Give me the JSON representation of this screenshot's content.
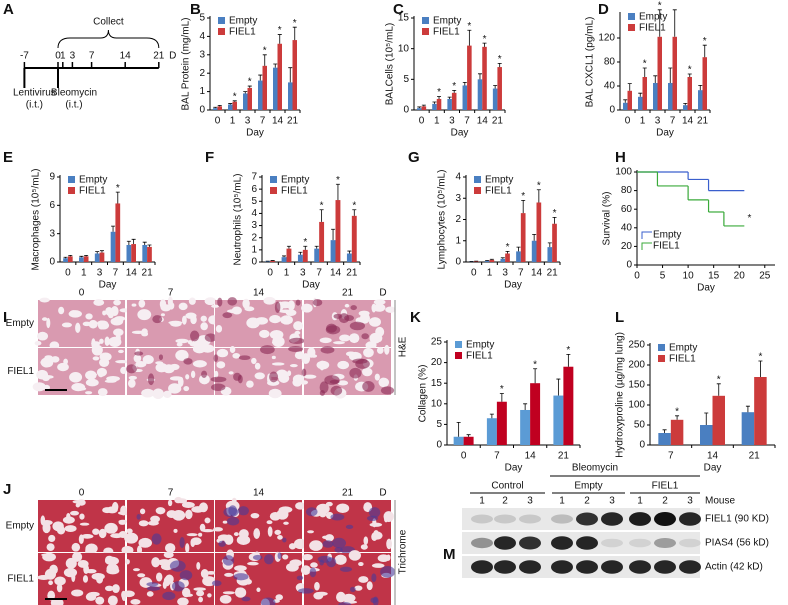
{
  "panels": {
    "A": "A",
    "B": "B",
    "C": "C",
    "D": "D",
    "E": "E",
    "F": "F",
    "G": "G",
    "H": "H",
    "I": "I",
    "J": "J",
    "K": "K",
    "L": "L",
    "M": "M"
  },
  "timeline": {
    "title": "Collect",
    "ticks": [
      -7,
      0,
      1,
      3,
      7,
      14,
      21
    ],
    "unit": "D",
    "events": [
      {
        "label": "Lentivirus",
        "route": "(i.t.)",
        "day": -7
      },
      {
        "label": "Bleomycin",
        "route": "(i.t.)",
        "day": 0
      }
    ]
  },
  "chart_data": [
    {
      "type": "bar",
      "panel": "B",
      "ylabel": "BAL Protein (mg/mL)",
      "xlabel": "Day",
      "categories": [
        "0",
        "1",
        "3",
        "7",
        "14",
        "21"
      ],
      "ylim": [
        0,
        5
      ],
      "yticks": [
        0,
        1,
        2,
        3,
        4,
        5
      ],
      "series": [
        {
          "name": "Empty",
          "color": "#4a7fc1",
          "values": [
            0.1,
            0.3,
            0.9,
            1.6,
            2.3,
            1.5
          ],
          "errors": [
            0.05,
            0.05,
            0.1,
            0.3,
            0.2,
            0.8
          ]
        },
        {
          "name": "FIEL1",
          "color": "#cc3b3b",
          "values": [
            0.2,
            0.45,
            1.2,
            2.4,
            3.6,
            3.8
          ],
          "errors": [
            0.05,
            0.05,
            0.1,
            0.6,
            0.5,
            0.7
          ],
          "stars": [
            null,
            "*",
            "*",
            "*",
            "*",
            "*"
          ]
        }
      ]
    },
    {
      "type": "bar",
      "panel": "C",
      "ylabel": "BALCells (10⁵/mL)",
      "xlabel": "Day",
      "categories": [
        "0",
        "1",
        "3",
        "7",
        "14",
        "21"
      ],
      "ylim": [
        0,
        15
      ],
      "yticks": [
        0,
        5,
        10,
        15
      ],
      "series": [
        {
          "name": "Empty",
          "color": "#4a7fc1",
          "values": [
            0.3,
            1.0,
            1.8,
            4.0,
            5.0,
            3.5
          ],
          "errors": [
            0.2,
            0.3,
            0.3,
            0.5,
            0.9,
            0.5
          ]
        },
        {
          "name": "FIEL1",
          "color": "#cc3b3b",
          "values": [
            0.6,
            1.8,
            2.8,
            10.5,
            10.3,
            7.0
          ],
          "errors": [
            0.2,
            0.4,
            0.4,
            2.5,
            0.6,
            0.6
          ],
          "stars": [
            null,
            "*",
            "*",
            "*",
            "*",
            "*"
          ]
        }
      ]
    },
    {
      "type": "bar",
      "panel": "D",
      "ylabel": "BAL CXCL1 (pg/mL)",
      "xlabel": "Day",
      "categories": [
        "0",
        "1",
        "3",
        "7",
        "14",
        "21"
      ],
      "ylim": [
        0,
        160
      ],
      "yticks": [
        0,
        40,
        80,
        120
      ],
      "series": [
        {
          "name": "Empty",
          "color": "#4a7fc1",
          "values": [
            12,
            22,
            45,
            45,
            8,
            33
          ],
          "errors": [
            5,
            6,
            12,
            25,
            3,
            8
          ]
        },
        {
          "name": "FIEL1",
          "color": "#cc3b3b",
          "values": [
            32,
            55,
            122,
            122,
            55,
            88
          ],
          "errors": [
            12,
            15,
            45,
            45,
            5,
            20
          ],
          "stars": [
            null,
            "*",
            "*",
            null,
            "*",
            "*"
          ]
        }
      ]
    },
    {
      "type": "bar",
      "panel": "E",
      "ylabel": "Macrophages (10⁵/mL)",
      "xlabel": "Day",
      "categories": [
        "0",
        "1",
        "3",
        "7",
        "14",
        "21"
      ],
      "ylim": [
        0,
        9
      ],
      "yticks": [
        0,
        3,
        6,
        9
      ],
      "series": [
        {
          "name": "Empty",
          "color": "#4a7fc1",
          "values": [
            0.4,
            0.5,
            0.9,
            3.2,
            1.8,
            1.8
          ],
          "errors": [
            0.1,
            0.1,
            0.2,
            0.6,
            0.4,
            0.3
          ]
        },
        {
          "name": "FIEL1",
          "color": "#cc3b3b",
          "values": [
            0.6,
            0.6,
            1.0,
            6.2,
            1.9,
            1.6
          ],
          "errors": [
            0.1,
            0.1,
            0.2,
            1.2,
            0.5,
            0.2
          ],
          "stars": [
            null,
            null,
            null,
            "*",
            null,
            null
          ]
        }
      ]
    },
    {
      "type": "bar",
      "panel": "F",
      "ylabel": "Neutrophils (10⁵/mL)",
      "xlabel": "Day",
      "categories": [
        "0",
        "1",
        "3",
        "7",
        "14",
        "21"
      ],
      "ylim": [
        0,
        7
      ],
      "yticks": [
        0,
        1,
        2,
        3,
        4,
        5,
        6,
        7
      ],
      "series": [
        {
          "name": "Empty",
          "color": "#4a7fc1",
          "values": [
            0.05,
            0.4,
            0.6,
            1.1,
            1.8,
            0.7
          ],
          "errors": [
            0.02,
            0.1,
            0.2,
            0.2,
            0.9,
            0.2
          ]
        },
        {
          "name": "FIEL1",
          "color": "#cc3b3b",
          "values": [
            0.1,
            1.1,
            1.0,
            3.3,
            5.1,
            3.8
          ],
          "errors": [
            0.02,
            0.2,
            0.3,
            1.0,
            1.3,
            0.5
          ],
          "stars": [
            null,
            null,
            "*",
            "*",
            "*",
            "*"
          ]
        }
      ]
    },
    {
      "type": "bar",
      "panel": "G",
      "ylabel": "Lymphocytes (10⁵/mL)",
      "xlabel": "Day",
      "categories": [
        "0",
        "1",
        "3",
        "7",
        "14",
        "21"
      ],
      "ylim": [
        0,
        4
      ],
      "yticks": [
        0,
        1,
        2,
        3,
        4
      ],
      "series": [
        {
          "name": "Empty",
          "color": "#4a7fc1",
          "values": [
            0.02,
            0.05,
            0.15,
            0.5,
            1.0,
            0.7
          ],
          "errors": [
            0.01,
            0.02,
            0.05,
            0.2,
            0.3,
            0.2
          ]
        },
        {
          "name": "FIEL1",
          "color": "#cc3b3b",
          "values": [
            0.03,
            0.1,
            0.4,
            2.3,
            2.8,
            1.8
          ],
          "errors": [
            0.01,
            0.03,
            0.1,
            0.6,
            0.6,
            0.3
          ],
          "stars": [
            null,
            null,
            "*",
            "*",
            "*",
            "*"
          ]
        }
      ]
    },
    {
      "type": "line",
      "panel": "H",
      "step": true,
      "ylabel": "Survival (%)",
      "xlabel": "Day",
      "xlim": [
        0,
        27
      ],
      "xticks": [
        0,
        5,
        10,
        15,
        20,
        25
      ],
      "ylim": [
        0,
        100
      ],
      "yticks": [
        0,
        20,
        40,
        60,
        80,
        100
      ],
      "series": [
        {
          "name": "Empty",
          "color": "#3a5fcd",
          "x": [
            0,
            10,
            14,
            21
          ],
          "values": [
            100,
            92,
            80,
            80
          ]
        },
        {
          "name": "FIEL1",
          "color": "#3aaa3a",
          "x": [
            0,
            4,
            10,
            14,
            17,
            21
          ],
          "values": [
            100,
            85,
            70,
            57,
            42,
            42
          ]
        }
      ],
      "annotations": [
        {
          "text": "*",
          "x": 22,
          "y": 50
        }
      ]
    },
    {
      "type": "bar",
      "panel": "K",
      "ylabel": "Collagen (%)",
      "xlabel": "Day",
      "categories": [
        "0",
        "7",
        "14",
        "21"
      ],
      "ylim": [
        0,
        25
      ],
      "yticks": [
        0,
        5,
        10,
        15,
        20,
        25
      ],
      "series": [
        {
          "name": "Empty",
          "color": "#5b9bd5",
          "values": [
            2,
            6.5,
            8.5,
            12
          ],
          "errors": [
            3.5,
            1,
            1.5,
            4
          ]
        },
        {
          "name": "FIEL1",
          "color": "#c00020",
          "values": [
            2,
            10.5,
            15,
            19
          ],
          "errors": [
            0.5,
            2,
            3.5,
            3
          ],
          "stars": [
            null,
            "*",
            "*",
            "*"
          ]
        }
      ]
    },
    {
      "type": "bar",
      "panel": "L",
      "ylabel": "Hydroxyproline (µg/mg lung)",
      "xlabel": "Day",
      "categories": [
        "7",
        "14",
        "21"
      ],
      "ylim": [
        0,
        250
      ],
      "yticks": [
        0,
        50,
        100,
        150,
        200,
        250
      ],
      "series": [
        {
          "name": "Empty",
          "color": "#4a7fc1",
          "values": [
            30,
            50,
            82
          ],
          "errors": [
            8,
            30,
            15
          ]
        },
        {
          "name": "FIEL1",
          "color": "#cc3b3b",
          "values": [
            63,
            123,
            170
          ],
          "errors": [
            10,
            30,
            40
          ],
          "stars": [
            "*",
            "*",
            "*"
          ]
        }
      ]
    }
  ],
  "histology": {
    "columns": [
      "0",
      "7",
      "14",
      "21"
    ],
    "unit": "D",
    "rows": [
      "Empty",
      "FIEL1"
    ],
    "stains": [
      "H&E",
      "Trichrome"
    ]
  },
  "blot": {
    "treatment": "Bleomycin",
    "groups": [
      "Control",
      "Empty",
      "FIEL1"
    ],
    "lanes": [
      "1",
      "2",
      "3"
    ],
    "lane_title": "Mouse",
    "bands": [
      "FIEL1 (90 KD)",
      "PIAS4 (56 kD)",
      "Actin (42 kD)"
    ]
  }
}
